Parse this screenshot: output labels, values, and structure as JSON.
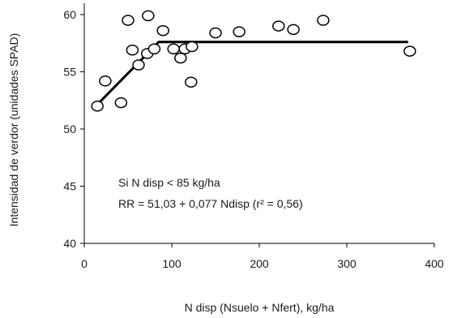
{
  "chart_data": {
    "type": "scatter",
    "xlabel": "N disp (Nsuelo + Nfert), kg/ha",
    "ylabel": "Intensidad de verdor (unidades SPAD)",
    "xlim": [
      0,
      400
    ],
    "ylim": [
      40,
      61
    ],
    "xticks": [
      "0",
      "100",
      "200",
      "300",
      "400"
    ],
    "yticks": [
      "40",
      "45",
      "50",
      "55",
      "60"
    ],
    "grid": false,
    "annotations": [
      "Si N disp < 85 kg/ha",
      "RR = 51,03 + 0,077 Ndisp (r² = 0,56)"
    ],
    "series": [
      {
        "marker": "open-circle",
        "points": [
          [
            15,
            52.0
          ],
          [
            24,
            54.2
          ],
          [
            42,
            52.3
          ],
          [
            50,
            59.5
          ],
          [
            55,
            56.9
          ],
          [
            62,
            55.6
          ],
          [
            72,
            56.6
          ],
          [
            73,
            59.9
          ],
          [
            80,
            57.0
          ],
          [
            90,
            58.6
          ],
          [
            102,
            57.0
          ],
          [
            110,
            56.2
          ],
          [
            115,
            57.0
          ],
          [
            122,
            54.1
          ],
          [
            123,
            57.2
          ],
          [
            150,
            58.4
          ],
          [
            177,
            58.5
          ],
          [
            222,
            59.0
          ],
          [
            239,
            58.7
          ],
          [
            273,
            59.5
          ],
          [
            372,
            56.8
          ]
        ]
      },
      {
        "style": "line",
        "color": "#000000",
        "points": [
          [
            17,
            52.3
          ],
          [
            85,
            57.6
          ],
          [
            370,
            57.6
          ]
        ]
      }
    ]
  }
}
